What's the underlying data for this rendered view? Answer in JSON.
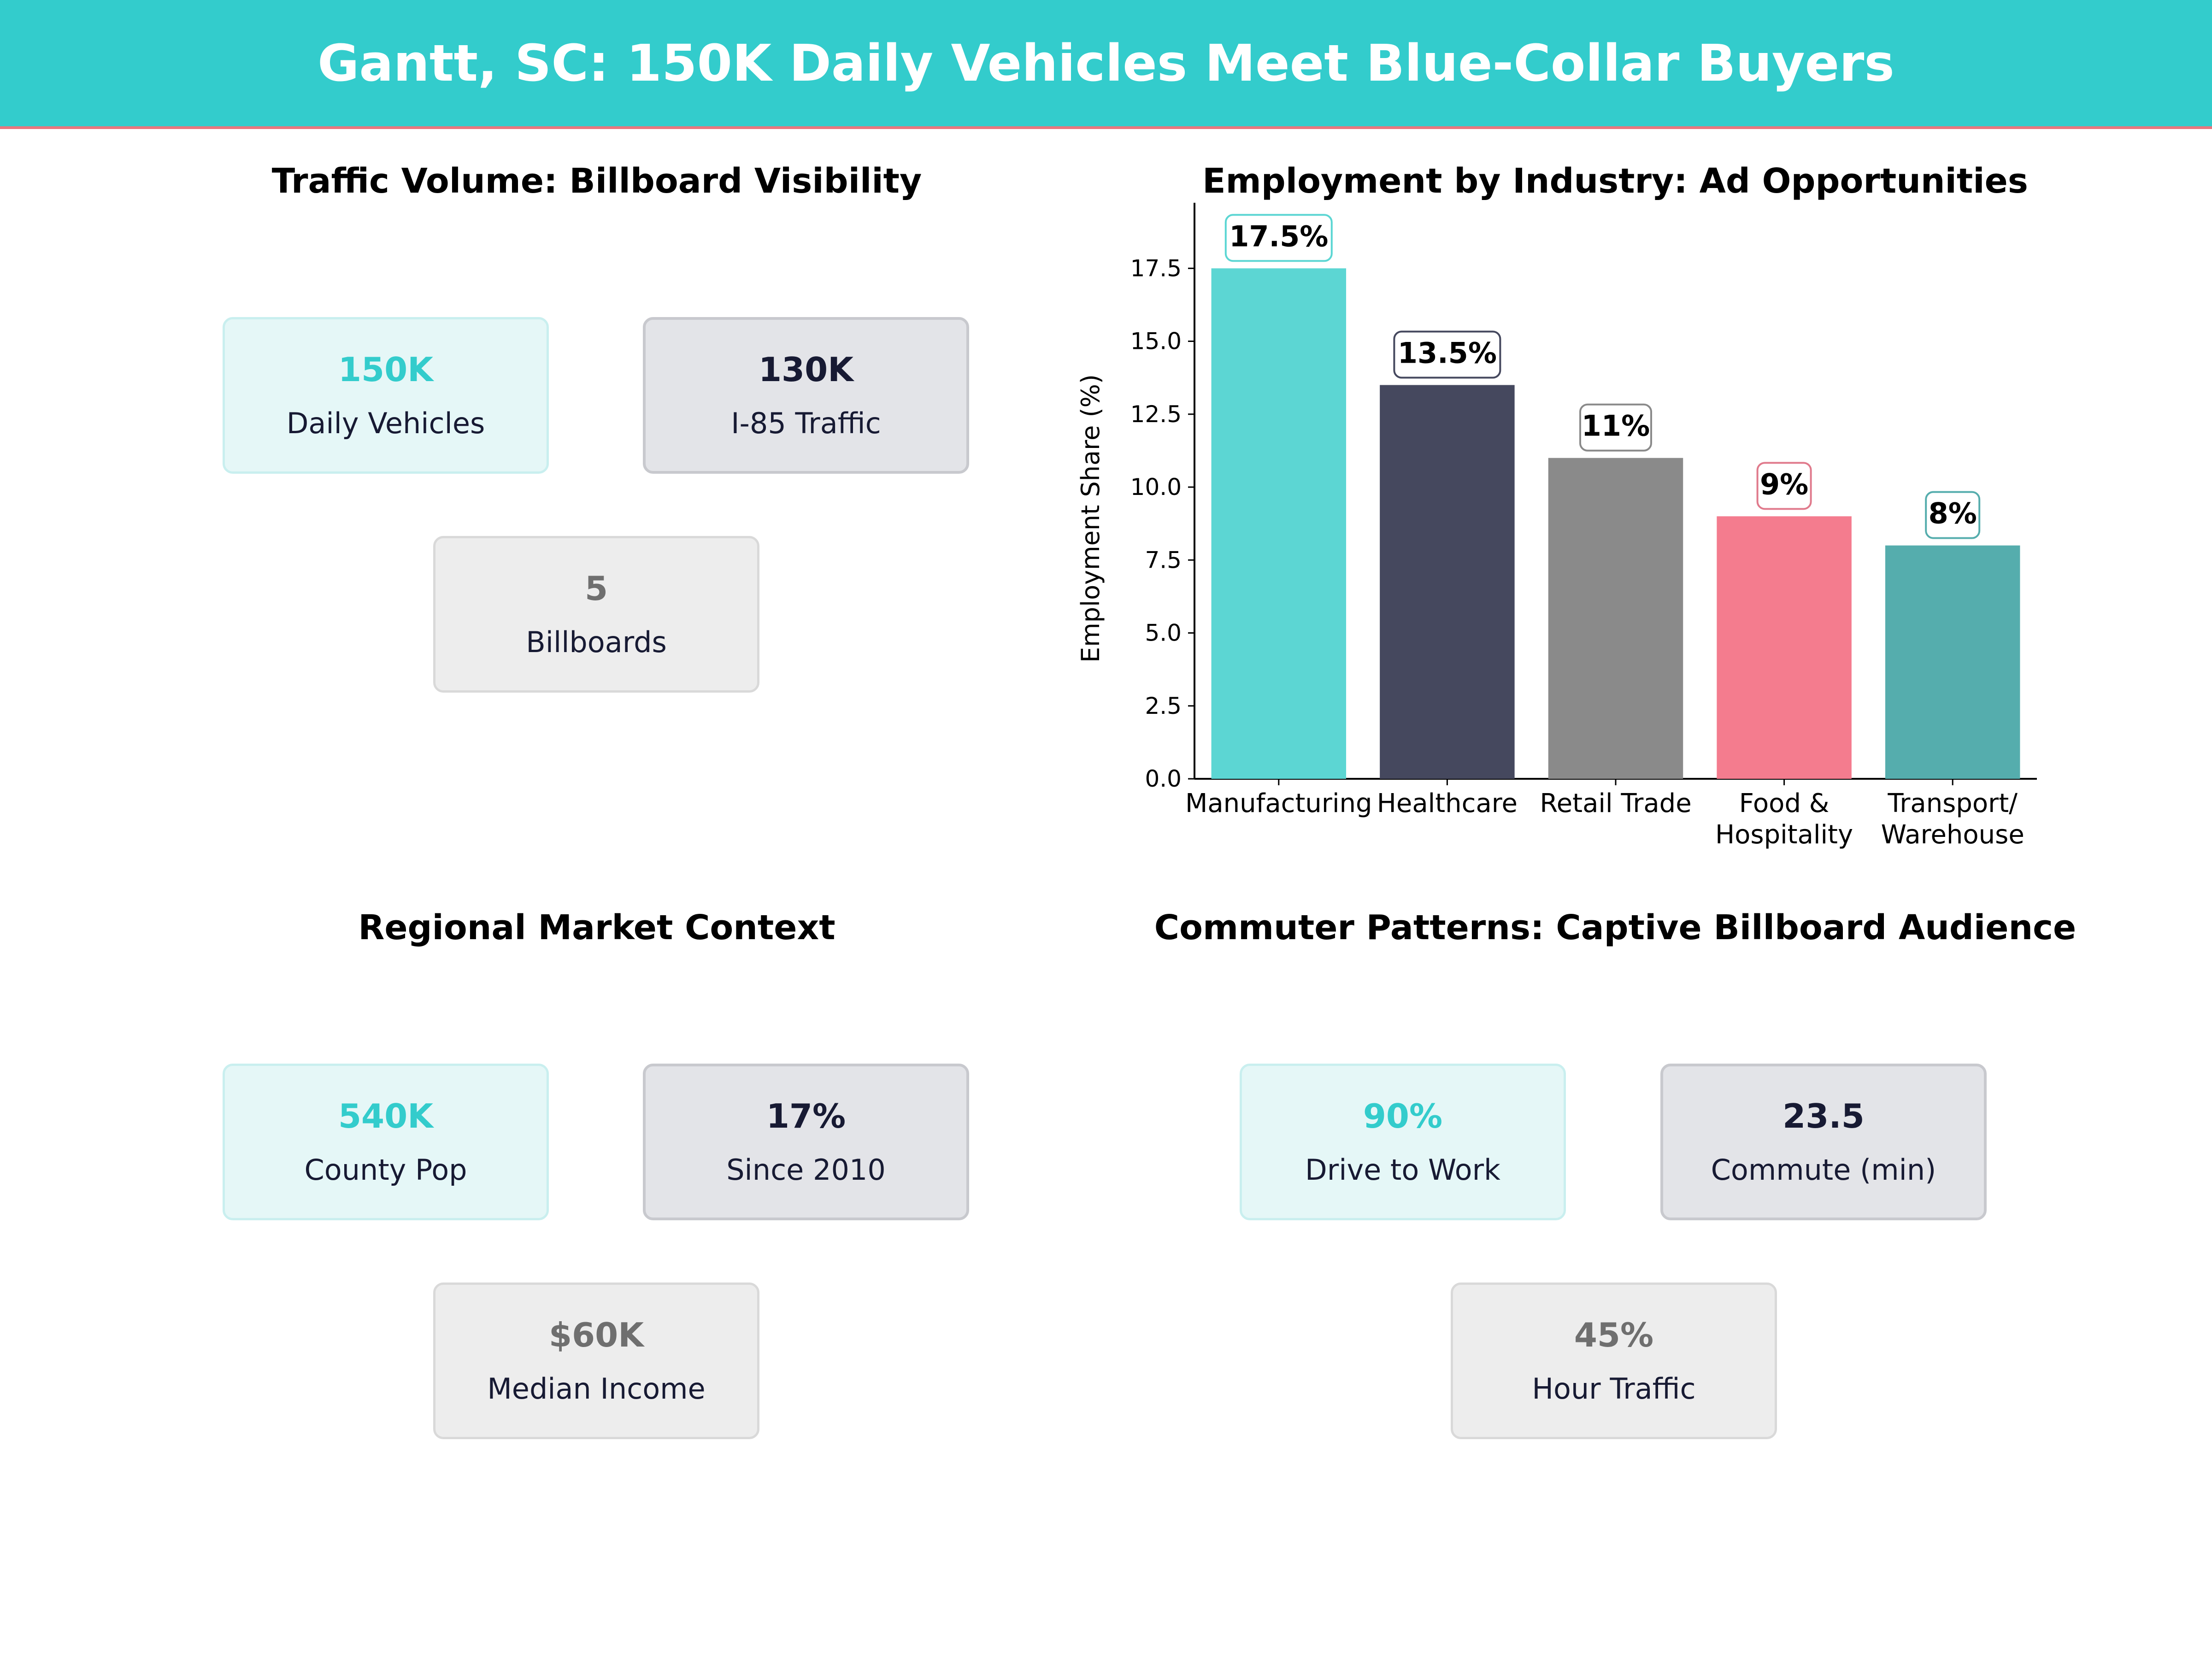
{
  "header": {
    "title": "Gantt, SC: 150K Daily Vehicles Meet Blue-Collar Buyers",
    "background": "#33CCCC",
    "accent_line": "#E8767E"
  },
  "panels": {
    "traffic": {
      "title": "Traffic Volume: Billboard Visibility",
      "cards": [
        {
          "value": "150K",
          "label": "Daily Vehicles",
          "style": "teal"
        },
        {
          "value": "130K",
          "label": "I-85 Traffic",
          "style": "navy"
        },
        {
          "value": "5",
          "label": "Billboards",
          "style": "gray"
        }
      ]
    },
    "employment": {
      "title": "Employment by Industry: Ad Opportunities"
    },
    "regional": {
      "title": "Regional Market Context",
      "cards": [
        {
          "value": "540K",
          "label": "County Pop",
          "style": "teal"
        },
        {
          "value": "17%",
          "label": "Since 2010",
          "style": "navy"
        },
        {
          "value": "$60K",
          "label": "Median Income",
          "style": "gray"
        }
      ]
    },
    "commuter": {
      "title": "Commuter Patterns: Captive Billboard Audience",
      "cards": [
        {
          "value": "90%",
          "label": "Drive to Work",
          "style": "teal"
        },
        {
          "value": "23.5",
          "label": "Commute (min)",
          "style": "navy"
        },
        {
          "value": "45%",
          "label": "Hour Traffic",
          "style": "gray"
        }
      ]
    }
  },
  "chart_data": {
    "type": "bar",
    "title": "Employment by Industry: Ad Opportunities",
    "xlabel": "",
    "ylabel": "Employment Share (%)",
    "categories": [
      "Manufacturing",
      "Healthcare",
      "Retail Trade",
      "Food &\nHospitality",
      "Transport/\nWarehouse"
    ],
    "values": [
      17.5,
      13.5,
      11,
      9,
      8
    ],
    "value_labels": [
      "17.5%",
      "13.5%",
      "11%",
      "9%",
      "8%"
    ],
    "colors": [
      "#5CD6D3",
      "#45485E",
      "#8A8A8A",
      "#F47C8E",
      "#55ADAD"
    ],
    "label_border_colors": [
      "#5CD6D3",
      "#45485E",
      "#8A8A8A",
      "#E07A8C",
      "#55ADAD"
    ],
    "yticks": [
      "0.0",
      "2.5",
      "5.0",
      "7.5",
      "10.0",
      "12.5",
      "15.0",
      "17.5"
    ],
    "ylim": [
      0,
      18.8
    ],
    "grid": false,
    "legend": "none"
  }
}
